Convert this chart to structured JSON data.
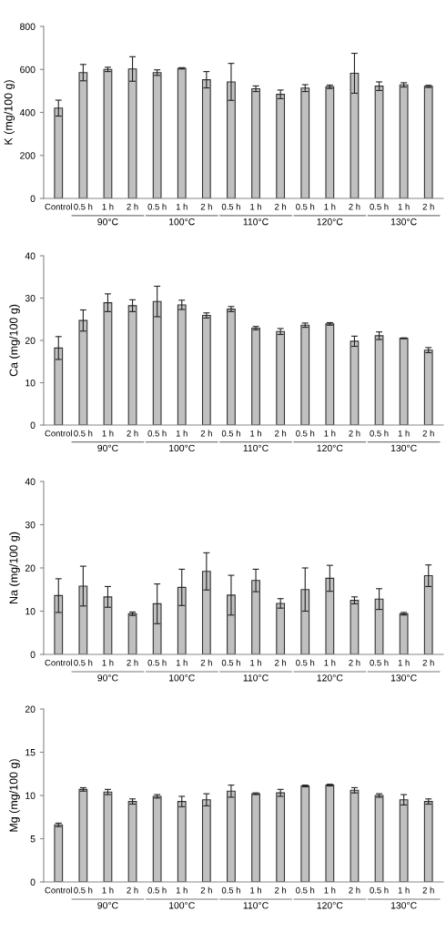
{
  "chart_data": [
    {
      "type": "bar",
      "ylabel": "K (mg/100 g)",
      "categories": [
        "Control",
        "0.5 h",
        "1 h",
        "2 h",
        "0.5 h",
        "1 h",
        "2 h",
        "0.5 h",
        "1 h",
        "2 h",
        "0.5 h",
        "1 h",
        "2 h",
        "0.5 h",
        "1 h",
        "2 h"
      ],
      "series": [
        {
          "color": "#c0c0c0",
          "values": [
            420,
            585,
            600,
            602,
            585,
            605,
            552,
            542,
            510,
            484,
            513,
            519,
            582,
            522,
            528,
            521
          ],
          "errors": [
            37,
            38,
            10,
            57,
            13,
            3,
            38,
            86,
            13,
            20,
            16,
            8,
            93,
            20,
            10,
            5
          ]
        }
      ],
      "ylim": [
        0,
        800
      ],
      "yticks": [
        0,
        200,
        400,
        600,
        800
      ],
      "grid": false,
      "annotations": [
        "90°C",
        "100°C",
        "110°C",
        "120°C",
        "130°C"
      ]
    },
    {
      "type": "bar",
      "ylabel": "Ca (mg/100 g)",
      "categories": [
        "Control",
        "0.5 h",
        "1 h",
        "2 h",
        "0.5 h",
        "1 h",
        "2 h",
        "0.5 h",
        "1 h",
        "2 h",
        "0.5 h",
        "1 h",
        "2 h",
        "0.5 h",
        "1 h",
        "2 h"
      ],
      "series": [
        {
          "color": "#c0c0c0",
          "values": [
            18.2,
            24.7,
            28.9,
            28.2,
            29.2,
            28.4,
            25.9,
            27.4,
            22.9,
            22.1,
            23.6,
            23.9,
            19.8,
            21.1,
            20.5,
            17.7
          ],
          "errors": [
            2.7,
            2.5,
            2.1,
            1.4,
            3.6,
            1.1,
            0.6,
            0.6,
            0.4,
            0.7,
            0.5,
            0.3,
            1.2,
            0.9,
            0.1,
            0.6
          ]
        }
      ],
      "ylim": [
        0,
        40
      ],
      "yticks": [
        0,
        10,
        20,
        30,
        40
      ],
      "grid": false,
      "annotations": [
        "90°C",
        "100°C",
        "110°C",
        "120°C",
        "130°C"
      ]
    },
    {
      "type": "bar",
      "ylabel": "Na (mg/100 g)",
      "categories": [
        "Control",
        "0.5 h",
        "1 h",
        "2 h",
        "0.5 h",
        "1 h",
        "2 h",
        "0.5 h",
        "1 h",
        "2 h",
        "0.5 h",
        "1 h",
        "2 h",
        "0.5 h",
        "1 h",
        "2 h"
      ],
      "series": [
        {
          "color": "#c0c0c0",
          "values": [
            13.6,
            15.8,
            13.3,
            9.4,
            11.7,
            15.5,
            19.2,
            13.7,
            17.1,
            11.8,
            15.0,
            17.6,
            12.5,
            12.8,
            9.4,
            18.2
          ],
          "errors": [
            3.9,
            4.6,
            2.4,
            0.4,
            4.6,
            4.2,
            4.3,
            4.6,
            2.6,
            1.1,
            5.0,
            3.0,
            0.8,
            2.4,
            0.3,
            2.5
          ]
        }
      ],
      "ylim": [
        0,
        40
      ],
      "yticks": [
        0,
        10,
        20,
        30,
        40
      ],
      "grid": false,
      "annotations": [
        "90°C",
        "100°C",
        "110°C",
        "120°C",
        "130°C"
      ]
    },
    {
      "type": "bar",
      "ylabel": "Mg (mg/100 g)",
      "categories": [
        "Control",
        "0.5 h",
        "1 h",
        "2 h",
        "0.5 h",
        "1 h",
        "2 h",
        "0.5 h",
        "1 h",
        "2 h",
        "0.5 h",
        "1 h",
        "2 h",
        "0.5 h",
        "1 h",
        "2 h"
      ],
      "series": [
        {
          "color": "#c0c0c0",
          "values": [
            6.6,
            10.7,
            10.4,
            9.3,
            9.9,
            9.3,
            9.5,
            10.5,
            10.2,
            10.3,
            11.1,
            11.2,
            10.6,
            10.0,
            9.5,
            9.3
          ],
          "errors": [
            0.2,
            0.2,
            0.3,
            0.3,
            0.2,
            0.6,
            0.7,
            0.7,
            0.1,
            0.4,
            0.1,
            0.1,
            0.3,
            0.2,
            0.6,
            0.3
          ]
        }
      ],
      "ylim": [
        0,
        20
      ],
      "yticks": [
        0,
        5,
        10,
        15,
        20
      ],
      "grid": false,
      "annotations": [
        "90°C",
        "100°C",
        "110°C",
        "120°C",
        "130°C"
      ]
    }
  ]
}
